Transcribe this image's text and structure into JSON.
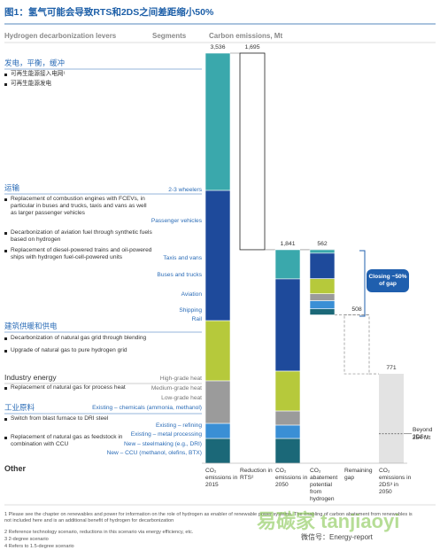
{
  "title": "图1：氢气可能会导致RTS和2DS之间差距缩小50%",
  "chart_data": {
    "type": "waterfall",
    "headers": [
      "Hydrogen decarbonization levers",
      "Segments",
      "Carbon emissions, Mt"
    ],
    "categories": [
      "CO₂ emissions in 2015",
      "Reduction in RTS²",
      "CO₂ emissions in 2050",
      "CO₂ abatement potential from hydrogen",
      "Remaining gap",
      "CO₂ emissions in 2DS³ in 2050"
    ],
    "measure": [
      "total",
      "decrease",
      "total",
      "decrease",
      "decrease",
      "total"
    ],
    "totals": [
      3536,
      1695,
      1841,
      562,
      508,
      771
    ],
    "value_labels": [
      "3,536",
      "1,695",
      "1,841",
      "562",
      "508",
      "771"
    ],
    "series": [
      {
        "name": "发电，平衡，缓冲",
        "color": "#3aa8ac",
        "values": [
          1184,
          null,
          252,
          30,
          null,
          null
        ],
        "levers": [
          "可再生能源接入电网¹",
          "可再生能源发电"
        ],
        "segments": []
      },
      {
        "name": "运输",
        "color": "#1e4a9b",
        "values": [
          1123,
          null,
          795,
          220,
          null,
          null
        ],
        "levers": [
          "Replacement of combustion engines with FCEVs, in particular in buses and trucks, taxis and vans as well as larger passenger vehicles",
          "Decarbonization of aviation fuel through synthetic fuels based on hydrogen",
          "Replacement of diesel-powered trains and oil-powered ships with hydrogen fuel-cell-powered units"
        ],
        "segments": [
          "2-3 wheelers",
          "Passenger vehicles",
          "Taxis and vans",
          "Buses and trucks",
          "Aviation",
          "Shipping",
          "Rail"
        ]
      },
      {
        "name": "建筑供暖和供电",
        "color": "#b6c93b",
        "values": [
          519,
          null,
          344,
          130,
          null,
          null
        ],
        "levers": [
          "Decarbonization of natural gas grid through blending",
          "Upgrade of natural gas to pure hydrogen grid"
        ],
        "segments": []
      },
      {
        "name": "Industry energy",
        "color": "#9b9b9b",
        "values": [
          367,
          null,
          122,
          60,
          null,
          null
        ],
        "levers": [
          "Replacement of natural gas for process heat"
        ],
        "segments": [
          "High-grade heat",
          "Medium-grade heat",
          "Low-grade heat"
        ]
      },
      {
        "name": "工业原料",
        "color": "#3a8fd5",
        "values": [
          130,
          null,
          115,
          70,
          null,
          null
        ],
        "levers": [
          "Switch from blast furnace to DRI steel",
          "Replacement of natural gas as feedstock in combination with CCU"
        ],
        "segments": [
          "Existing – chemicals (ammonia, methanol)",
          "Existing – refining",
          "Existing – metal processing",
          "New – steelmaking (e.g., DRI)",
          "New – CCU (methanol, olefins, BTX)"
        ]
      },
      {
        "name": "Other",
        "color": "#1b6878",
        "values": [
          213,
          null,
          213,
          52,
          null,
          null
        ],
        "levers": [],
        "segments": []
      }
    ],
    "callout": "Closing ~50% of gap",
    "beyond_2ds": {
      "label": "Beyond 2DS⁴:",
      "value": 254,
      "value_label": "254 Mt"
    }
  },
  "footnotes": [
    "1 Please see the chapter on renewables and power for information on the role of hydrogen as enabler of renewable power systems. The enabling of carbon abatement from renewables is not included here and is an additional benefit of hydrogen for decarbonization",
    "2 Reference technology scenario, reductions in this scenario via energy efficiency, etc.",
    "3 2-degree scenario",
    "4 Refers to 1.5-degree scenario"
  ],
  "watermark": [
    "易碳家 tanjiaoyi",
    "微信号：Energy-report"
  ]
}
